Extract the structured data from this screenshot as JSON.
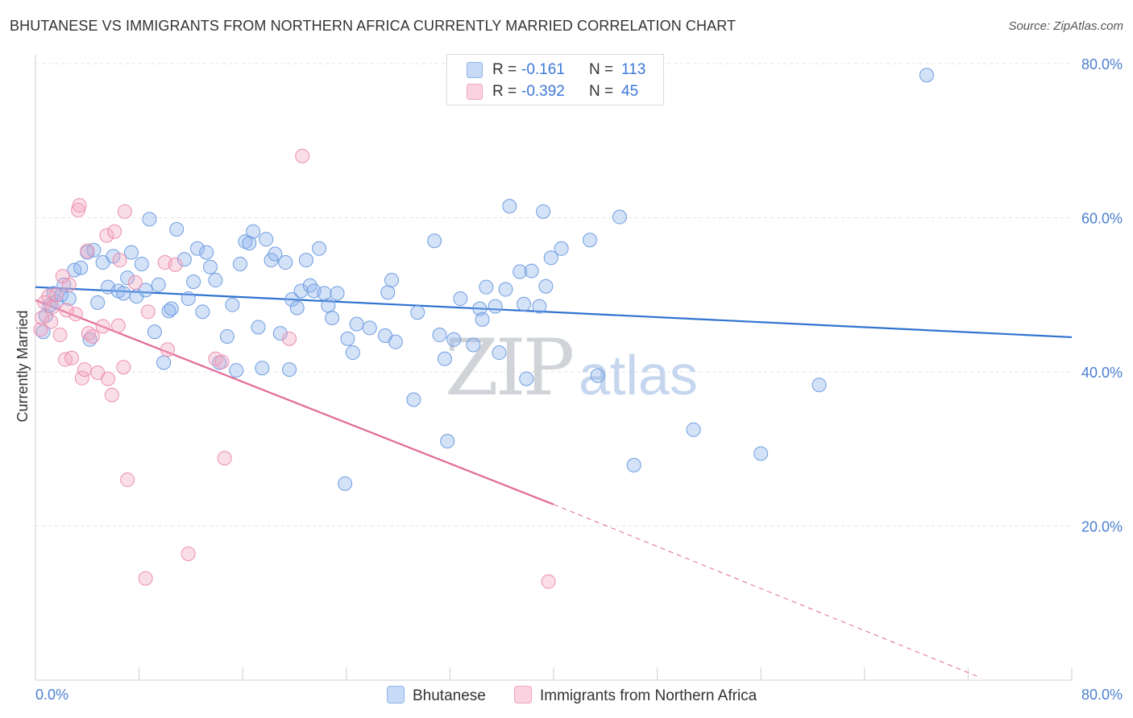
{
  "title": "BHUTANESE VS IMMIGRANTS FROM NORTHERN AFRICA CURRENTLY MARRIED CORRELATION CHART",
  "source": "Source: ZipAtlas.com",
  "watermark": {
    "zip": "ZIP",
    "atlas": "atlas"
  },
  "colors": {
    "blue": "#8fb4ec",
    "blue_line": "#2f72d0",
    "pink": "#f1a7c0",
    "pink_line": "#e26a97",
    "tick": "#4a7fd0"
  },
  "legend_top": {
    "rows": [
      {
        "r_label": "R =",
        "r_value": "-0.161",
        "n_label": "N =",
        "n_value": "113"
      },
      {
        "r_label": "R =",
        "r_value": "-0.392",
        "n_label": "N =",
        "n_value": "45"
      }
    ]
  },
  "legend_bottom": [
    "Bhutanese",
    "Immigrants from Northern Africa"
  ],
  "chart_data": {
    "type": "scatter",
    "title": "BHUTANESE VS IMMIGRANTS FROM NORTHERN AFRICA CURRENTLY MARRIED CORRELATION CHART",
    "xlabel": "",
    "ylabel": "Currently Married",
    "xlim": [
      0,
      80
    ],
    "ylim": [
      0,
      80
    ],
    "x_ticks": [
      "0.0%",
      "80.0%"
    ],
    "y_ticks": [
      "20.0%",
      "40.0%",
      "60.0%",
      "80.0%"
    ],
    "y_tick_values": [
      20,
      40,
      60,
      80
    ],
    "grid": true,
    "legend_position": "bottom",
    "series": [
      {
        "name": "Bhutanese",
        "color": "#8fb4ec",
        "trend": {
          "x0": 0,
          "y0": 51.0,
          "x1": 80,
          "y1": 44.5
        },
        "points": [
          [
            0.6,
            45.2
          ],
          [
            0.8,
            47.3
          ],
          [
            1.1,
            48.6
          ],
          [
            1.4,
            50.2
          ],
          [
            1.6,
            49.1
          ],
          [
            2.0,
            50.0
          ],
          [
            2.2,
            51.3
          ],
          [
            2.6,
            49.5
          ],
          [
            3.0,
            53.2
          ],
          [
            3.5,
            53.5
          ],
          [
            4.0,
            55.5
          ],
          [
            4.2,
            44.2
          ],
          [
            4.5,
            55.8
          ],
          [
            4.8,
            49.0
          ],
          [
            5.2,
            54.2
          ],
          [
            5.6,
            51.0
          ],
          [
            6.0,
            55.0
          ],
          [
            6.4,
            50.5
          ],
          [
            6.8,
            50.2
          ],
          [
            7.1,
            52.2
          ],
          [
            7.4,
            55.5
          ],
          [
            7.8,
            49.8
          ],
          [
            8.2,
            54.0
          ],
          [
            8.5,
            50.6
          ],
          [
            8.8,
            59.8
          ],
          [
            9.2,
            45.2
          ],
          [
            9.5,
            51.3
          ],
          [
            9.9,
            41.2
          ],
          [
            10.3,
            47.9
          ],
          [
            10.5,
            48.2
          ],
          [
            10.9,
            58.5
          ],
          [
            11.5,
            54.6
          ],
          [
            11.8,
            49.5
          ],
          [
            12.2,
            51.7
          ],
          [
            12.5,
            56.0
          ],
          [
            12.9,
            47.8
          ],
          [
            13.2,
            55.5
          ],
          [
            13.5,
            53.6
          ],
          [
            13.9,
            51.9
          ],
          [
            14.2,
            41.2
          ],
          [
            14.8,
            44.6
          ],
          [
            15.2,
            48.7
          ],
          [
            15.5,
            40.2
          ],
          [
            15.8,
            54.0
          ],
          [
            16.2,
            56.9
          ],
          [
            16.5,
            56.7
          ],
          [
            16.8,
            58.2
          ],
          [
            17.2,
            45.8
          ],
          [
            17.5,
            40.5
          ],
          [
            17.8,
            57.2
          ],
          [
            18.2,
            54.5
          ],
          [
            18.5,
            55.3
          ],
          [
            18.9,
            45.0
          ],
          [
            19.3,
            54.2
          ],
          [
            19.6,
            40.3
          ],
          [
            19.8,
            49.4
          ],
          [
            20.2,
            48.3
          ],
          [
            20.5,
            50.5
          ],
          [
            20.9,
            54.5
          ],
          [
            21.2,
            51.2
          ],
          [
            21.5,
            50.5
          ],
          [
            21.9,
            56.0
          ],
          [
            22.3,
            50.2
          ],
          [
            22.6,
            48.6
          ],
          [
            22.9,
            47.0
          ],
          [
            23.3,
            50.2
          ],
          [
            23.9,
            25.5
          ],
          [
            24.1,
            44.3
          ],
          [
            24.5,
            42.5
          ],
          [
            24.8,
            46.2
          ],
          [
            25.8,
            45.7
          ],
          [
            27.0,
            44.7
          ],
          [
            27.2,
            50.3
          ],
          [
            27.5,
            51.9
          ],
          [
            27.8,
            43.9
          ],
          [
            29.2,
            36.4
          ],
          [
            29.5,
            47.7
          ],
          [
            30.8,
            57.0
          ],
          [
            31.2,
            44.8
          ],
          [
            31.6,
            41.7
          ],
          [
            31.8,
            31.0
          ],
          [
            32.3,
            44.2
          ],
          [
            32.8,
            49.5
          ],
          [
            33.8,
            43.5
          ],
          [
            34.3,
            48.2
          ],
          [
            34.5,
            46.8
          ],
          [
            34.8,
            51.0
          ],
          [
            35.5,
            48.5
          ],
          [
            35.8,
            42.5
          ],
          [
            36.3,
            50.7
          ],
          [
            36.6,
            61.5
          ],
          [
            37.4,
            53.0
          ],
          [
            37.7,
            48.8
          ],
          [
            37.9,
            39.1
          ],
          [
            38.3,
            53.1
          ],
          [
            38.9,
            48.5
          ],
          [
            39.2,
            60.8
          ],
          [
            39.4,
            51.1
          ],
          [
            39.8,
            54.8
          ],
          [
            40.6,
            56.0
          ],
          [
            42.8,
            57.1
          ],
          [
            43.4,
            39.5
          ],
          [
            45.1,
            60.1
          ],
          [
            46.2,
            27.9
          ],
          [
            50.8,
            32.5
          ],
          [
            56.0,
            29.4
          ],
          [
            60.5,
            38.3
          ],
          [
            68.8,
            78.5
          ]
        ]
      },
      {
        "name": "Immigrants from Northern Africa",
        "color": "#f1a7c0",
        "trend": {
          "x0": 0,
          "y0": 49.3,
          "x1": 40,
          "y1": 22.8
        },
        "trend_dashed": {
          "x0": 40,
          "y0": 22.8,
          "x1": 73,
          "y1": 0.3
        },
        "points": [
          [
            0.4,
            45.5
          ],
          [
            0.7,
            49.0
          ],
          [
            1.0,
            49.8
          ],
          [
            1.3,
            48.4
          ],
          [
            1.6,
            50.0
          ],
          [
            1.9,
            44.8
          ],
          [
            2.1,
            52.4
          ],
          [
            2.3,
            41.6
          ],
          [
            2.6,
            51.3
          ],
          [
            2.8,
            41.8
          ],
          [
            3.1,
            47.5
          ],
          [
            3.3,
            61.0
          ],
          [
            3.4,
            61.6
          ],
          [
            3.6,
            39.2
          ],
          [
            3.8,
            40.3
          ],
          [
            4.1,
            45.0
          ],
          [
            4.4,
            44.6
          ],
          [
            4.8,
            39.9
          ],
          [
            5.2,
            45.9
          ],
          [
            5.5,
            57.7
          ],
          [
            5.6,
            39.1
          ],
          [
            5.9,
            37.0
          ],
          [
            6.1,
            58.2
          ],
          [
            6.4,
            46.0
          ],
          [
            6.8,
            40.6
          ],
          [
            6.9,
            60.8
          ],
          [
            7.1,
            26.0
          ],
          [
            7.7,
            51.6
          ],
          [
            8.5,
            13.2
          ],
          [
            8.7,
            47.8
          ],
          [
            10.0,
            54.2
          ],
          [
            10.2,
            42.9
          ],
          [
            10.8,
            53.9
          ],
          [
            11.8,
            16.4
          ],
          [
            13.9,
            41.7
          ],
          [
            14.4,
            41.3
          ],
          [
            14.6,
            28.8
          ],
          [
            19.6,
            44.3
          ],
          [
            20.6,
            68.0
          ],
          [
            39.6,
            12.8
          ],
          [
            0.5,
            47.0
          ],
          [
            1.2,
            46.5
          ],
          [
            2.4,
            48.0
          ],
          [
            6.5,
            54.5
          ],
          [
            4.0,
            55.7
          ]
        ]
      }
    ]
  }
}
